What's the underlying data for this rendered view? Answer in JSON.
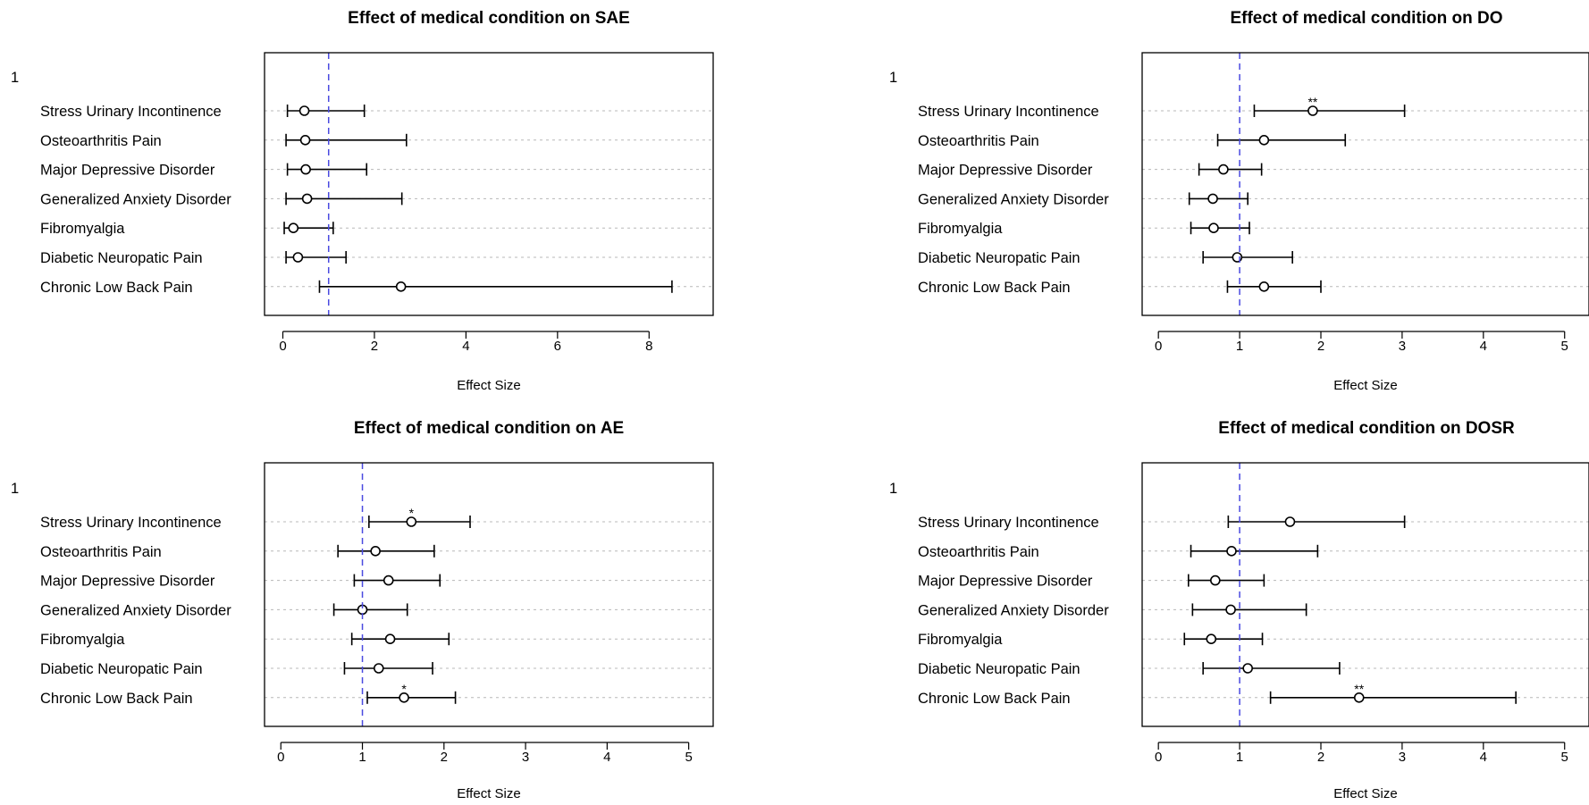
{
  "chart_data": [
    {
      "type": "forest",
      "title": "Effect of medical condition on SAE",
      "xlabel": "Effect Size",
      "corner_label": "1",
      "xlim": [
        -0.4,
        9.4
      ],
      "xticks": [
        0,
        2,
        4,
        6,
        8
      ],
      "reference_line": 1,
      "categories": [
        "Stress Urinary Incontinence",
        "Osteoarthritis Pain",
        "Major Depressive Disorder",
        "Generalized Anxiety Disorder",
        "Fibromyalgia",
        "Diabetic Neuropatic Pain",
        "Chronic Low Back Pain"
      ],
      "estimate": [
        0.47,
        0.49,
        0.5,
        0.53,
        0.23,
        0.33,
        2.58
      ],
      "lower": [
        0.1,
        0.07,
        0.1,
        0.07,
        0.03,
        0.07,
        0.8
      ],
      "upper": [
        1.78,
        2.7,
        1.83,
        2.6,
        1.1,
        1.38,
        8.5
      ],
      "significance": [
        "",
        "",
        "",
        "",
        "",
        "",
        ""
      ]
    },
    {
      "type": "forest",
      "title": "Effect of medical condition on DO",
      "xlabel": "Effect Size",
      "corner_label": "1",
      "xlim": [
        -0.2,
        5.3
      ],
      "xticks": [
        0,
        1,
        2,
        3,
        4,
        5
      ],
      "reference_line": 1,
      "categories": [
        "Stress Urinary Incontinence",
        "Osteoarthritis Pain",
        "Major Depressive Disorder",
        "Generalized Anxiety Disorder",
        "Fibromyalgia",
        "Diabetic Neuropatic Pain",
        "Chronic Low Back Pain"
      ],
      "estimate": [
        1.9,
        1.3,
        0.8,
        0.67,
        0.68,
        0.97,
        1.3
      ],
      "lower": [
        1.18,
        0.73,
        0.5,
        0.38,
        0.4,
        0.55,
        0.85
      ],
      "upper": [
        3.03,
        2.3,
        1.27,
        1.1,
        1.12,
        1.65,
        2.0
      ],
      "significance": [
        "**",
        "",
        "",
        "",
        "",
        "",
        ""
      ]
    },
    {
      "type": "forest",
      "title": "Effect of medical condition on AE",
      "xlabel": "Effect Size",
      "corner_label": "1",
      "xlim": [
        -0.2,
        5.3
      ],
      "xticks": [
        0,
        1,
        2,
        3,
        4,
        5
      ],
      "reference_line": 1,
      "categories": [
        "Stress Urinary Incontinence",
        "Osteoarthritis Pain",
        "Major Depressive Disorder",
        "Generalized Anxiety Disorder",
        "Fibromyalgia",
        "Diabetic Neuropatic Pain",
        "Chronic Low Back Pain"
      ],
      "estimate": [
        1.6,
        1.16,
        1.32,
        1.0,
        1.34,
        1.2,
        1.51
      ],
      "lower": [
        1.08,
        0.7,
        0.9,
        0.65,
        0.87,
        0.78,
        1.06
      ],
      "upper": [
        2.32,
        1.88,
        1.95,
        1.55,
        2.06,
        1.86,
        2.14
      ],
      "significance": [
        "*",
        "",
        "",
        "",
        "",
        "",
        "*"
      ]
    },
    {
      "type": "forest",
      "title": "Effect of medical condition on DOSR",
      "xlabel": "Effect Size",
      "corner_label": "1",
      "xlim": [
        -0.2,
        5.3
      ],
      "xticks": [
        0,
        1,
        2,
        3,
        4,
        5
      ],
      "reference_line": 1,
      "categories": [
        "Stress Urinary Incontinence",
        "Osteoarthritis Pain",
        "Major Depressive Disorder",
        "Generalized Anxiety Disorder",
        "Fibromyalgia",
        "Diabetic Neuropatic Pain",
        "Chronic Low Back Pain"
      ],
      "estimate": [
        1.62,
        0.9,
        0.7,
        0.89,
        0.65,
        1.1,
        2.47
      ],
      "lower": [
        0.86,
        0.4,
        0.37,
        0.42,
        0.32,
        0.55,
        1.38
      ],
      "upper": [
        3.03,
        1.96,
        1.3,
        1.82,
        1.28,
        2.23,
        4.4
      ],
      "significance": [
        "",
        "",
        "",
        "",
        "",
        "",
        "**"
      ]
    }
  ],
  "colors": {
    "reference_line": "#4a4ae0",
    "grid": "#b8b8b8",
    "ink": "#000000"
  }
}
